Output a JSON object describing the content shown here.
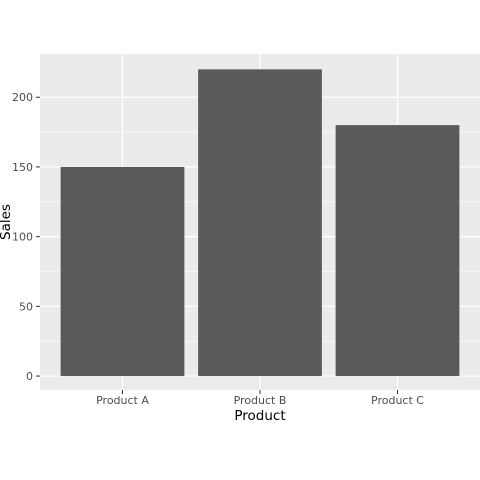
{
  "chart_data": {
    "type": "bar",
    "categories": [
      "Product A",
      "Product B",
      "Product C"
    ],
    "values": [
      150,
      220,
      180
    ],
    "title": "",
    "xlabel": "Product",
    "ylabel": "Sales",
    "ylim": [
      -10,
      231
    ],
    "yticks": [
      0,
      50,
      100,
      150,
      200
    ],
    "grid": true,
    "legend": "none",
    "colors": {
      "panel": "#ebebeb",
      "grid_major": "#ffffff",
      "bar": "#595959",
      "tick": "#333333"
    }
  }
}
